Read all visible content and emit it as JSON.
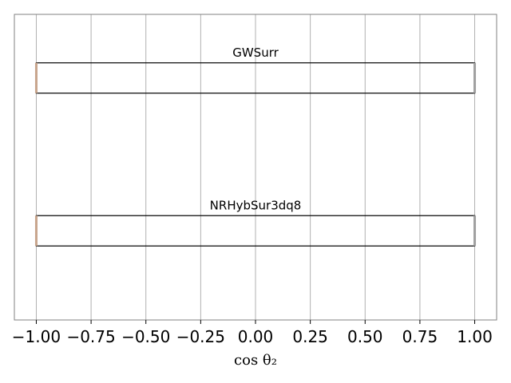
{
  "chart_data": {
    "type": "box",
    "orientation": "horizontal",
    "xlabel": "cos θ₂",
    "xlim": [
      -1.1,
      1.1
    ],
    "xticks": [
      -1.0,
      -0.75,
      -0.5,
      -0.25,
      0.0,
      0.25,
      0.5,
      0.75,
      1.0
    ],
    "xtick_labels": [
      "−1.00",
      "−0.75",
      "−0.50",
      "−0.25",
      "0.00",
      "0.25",
      "0.50",
      "0.75",
      "1.00"
    ],
    "grid": "vertical",
    "series": [
      {
        "name": "GWSurr",
        "min": -1.0,
        "q1": -1.0,
        "q3": 1.0,
        "max": 1.0
      },
      {
        "name": "NRHybSur3dq8",
        "min": -1.0,
        "q1": -1.0,
        "q3": 1.0,
        "max": 1.0
      }
    ],
    "colors": {
      "box_edge": "#000000",
      "grid": "#b0b0b0",
      "frame": "#808080",
      "median_mark": "#c8a58c",
      "end_mark": "#a0a0a0"
    }
  }
}
